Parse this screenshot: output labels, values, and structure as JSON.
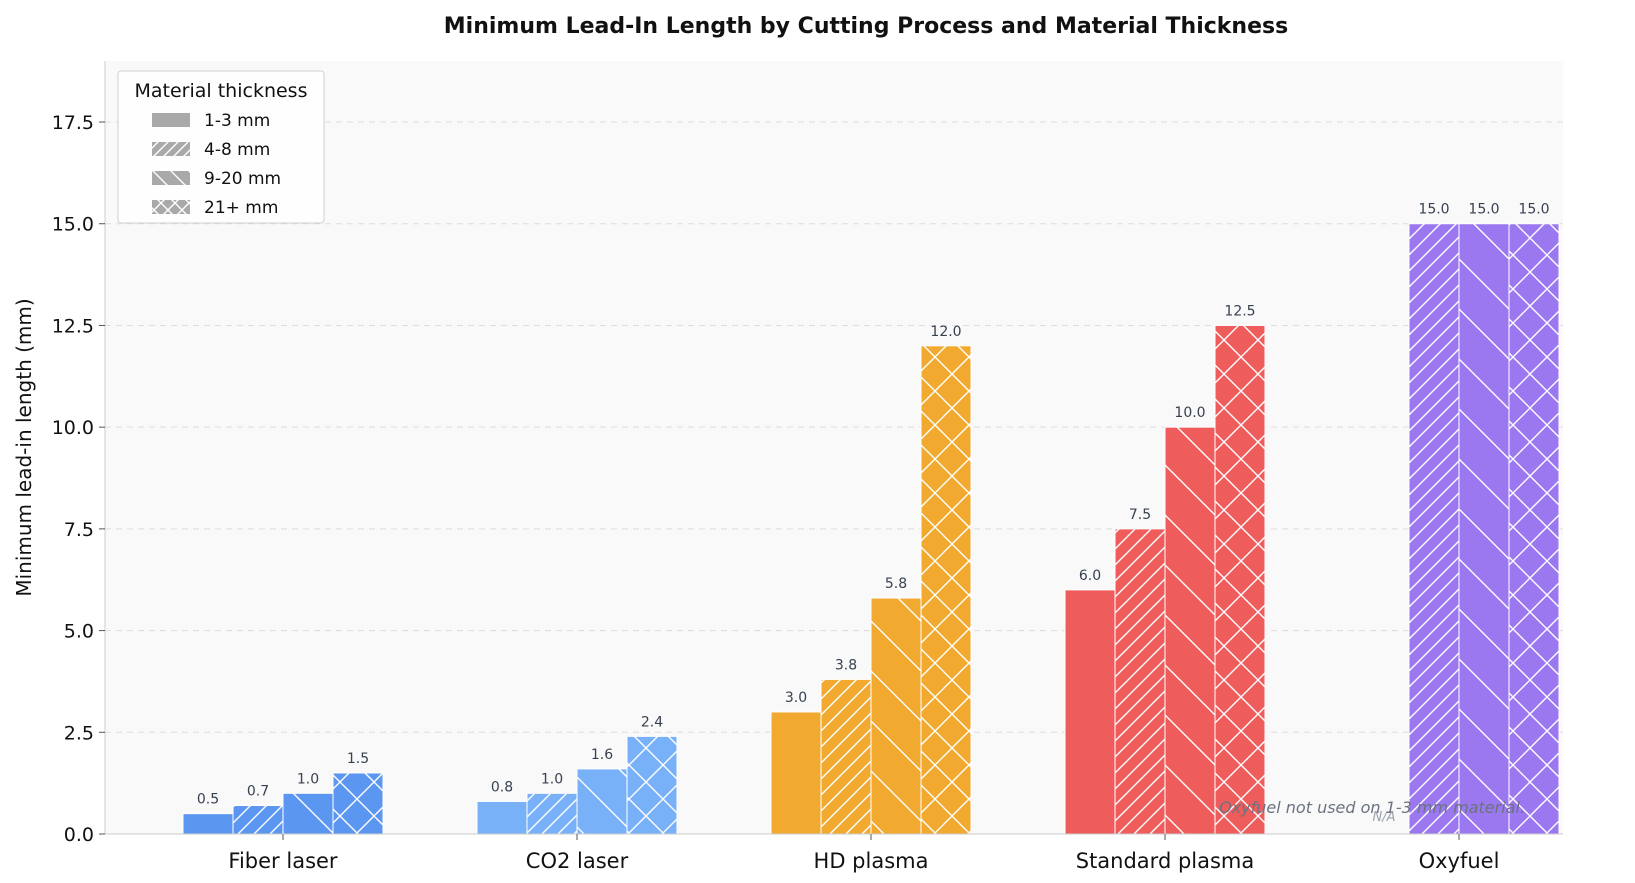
{
  "chart_data": {
    "type": "bar",
    "title": "Minimum Lead-In Length by Cutting Process and Material Thickness",
    "ylabel": "Minimum lead-in length (mm)",
    "xlabel": "",
    "ylim": [
      0,
      19
    ],
    "yticks": [
      "0.0",
      "2.5",
      "5.0",
      "7.5",
      "10.0",
      "12.5",
      "15.0",
      "17.5"
    ],
    "ytick_values": [
      0,
      2.5,
      5,
      7.5,
      10,
      12.5,
      15,
      17.5
    ],
    "grid": "horizontal-dashed",
    "categories": [
      "Fiber laser",
      "CO2 laser",
      "HD plasma",
      "Standard plasma",
      "Oxyfuel"
    ],
    "category_colors": [
      "#5b96f0",
      "#78b1f7",
      "#f2a930",
      "#ee5c5c",
      "#9b78f0"
    ],
    "legend": {
      "title": "Material thickness",
      "placement": "top-left",
      "color": "#a9a9a9"
    },
    "series": [
      {
        "name": "1-3 mm",
        "hatch": "solid",
        "values": [
          0.5,
          0.8,
          3.0,
          6.0,
          null
        ],
        "labels": [
          "0.5",
          "0.8",
          "3.0",
          "6.0",
          null
        ]
      },
      {
        "name": "4-8 mm",
        "hatch": "diagonal",
        "values": [
          0.7,
          1.0,
          3.8,
          7.5,
          15.0
        ],
        "labels": [
          "0.7",
          "1.0",
          "3.8",
          "7.5",
          "15.0"
        ]
      },
      {
        "name": "9-20 mm",
        "hatch": "backdiagonal",
        "values": [
          1.0,
          1.6,
          5.8,
          10.0,
          15.0
        ],
        "labels": [
          "1.0",
          "1.6",
          "5.8",
          "10.0",
          "15.0"
        ]
      },
      {
        "name": "21+ mm",
        "hatch": "cross",
        "values": [
          1.5,
          2.4,
          12.0,
          12.5,
          15.0
        ],
        "labels": [
          "1.5",
          "2.4",
          "12.0",
          "12.5",
          "15.0"
        ]
      }
    ],
    "missing_label": "N/A",
    "annotation": "Oxyfuel not used on 1-3 mm material."
  }
}
